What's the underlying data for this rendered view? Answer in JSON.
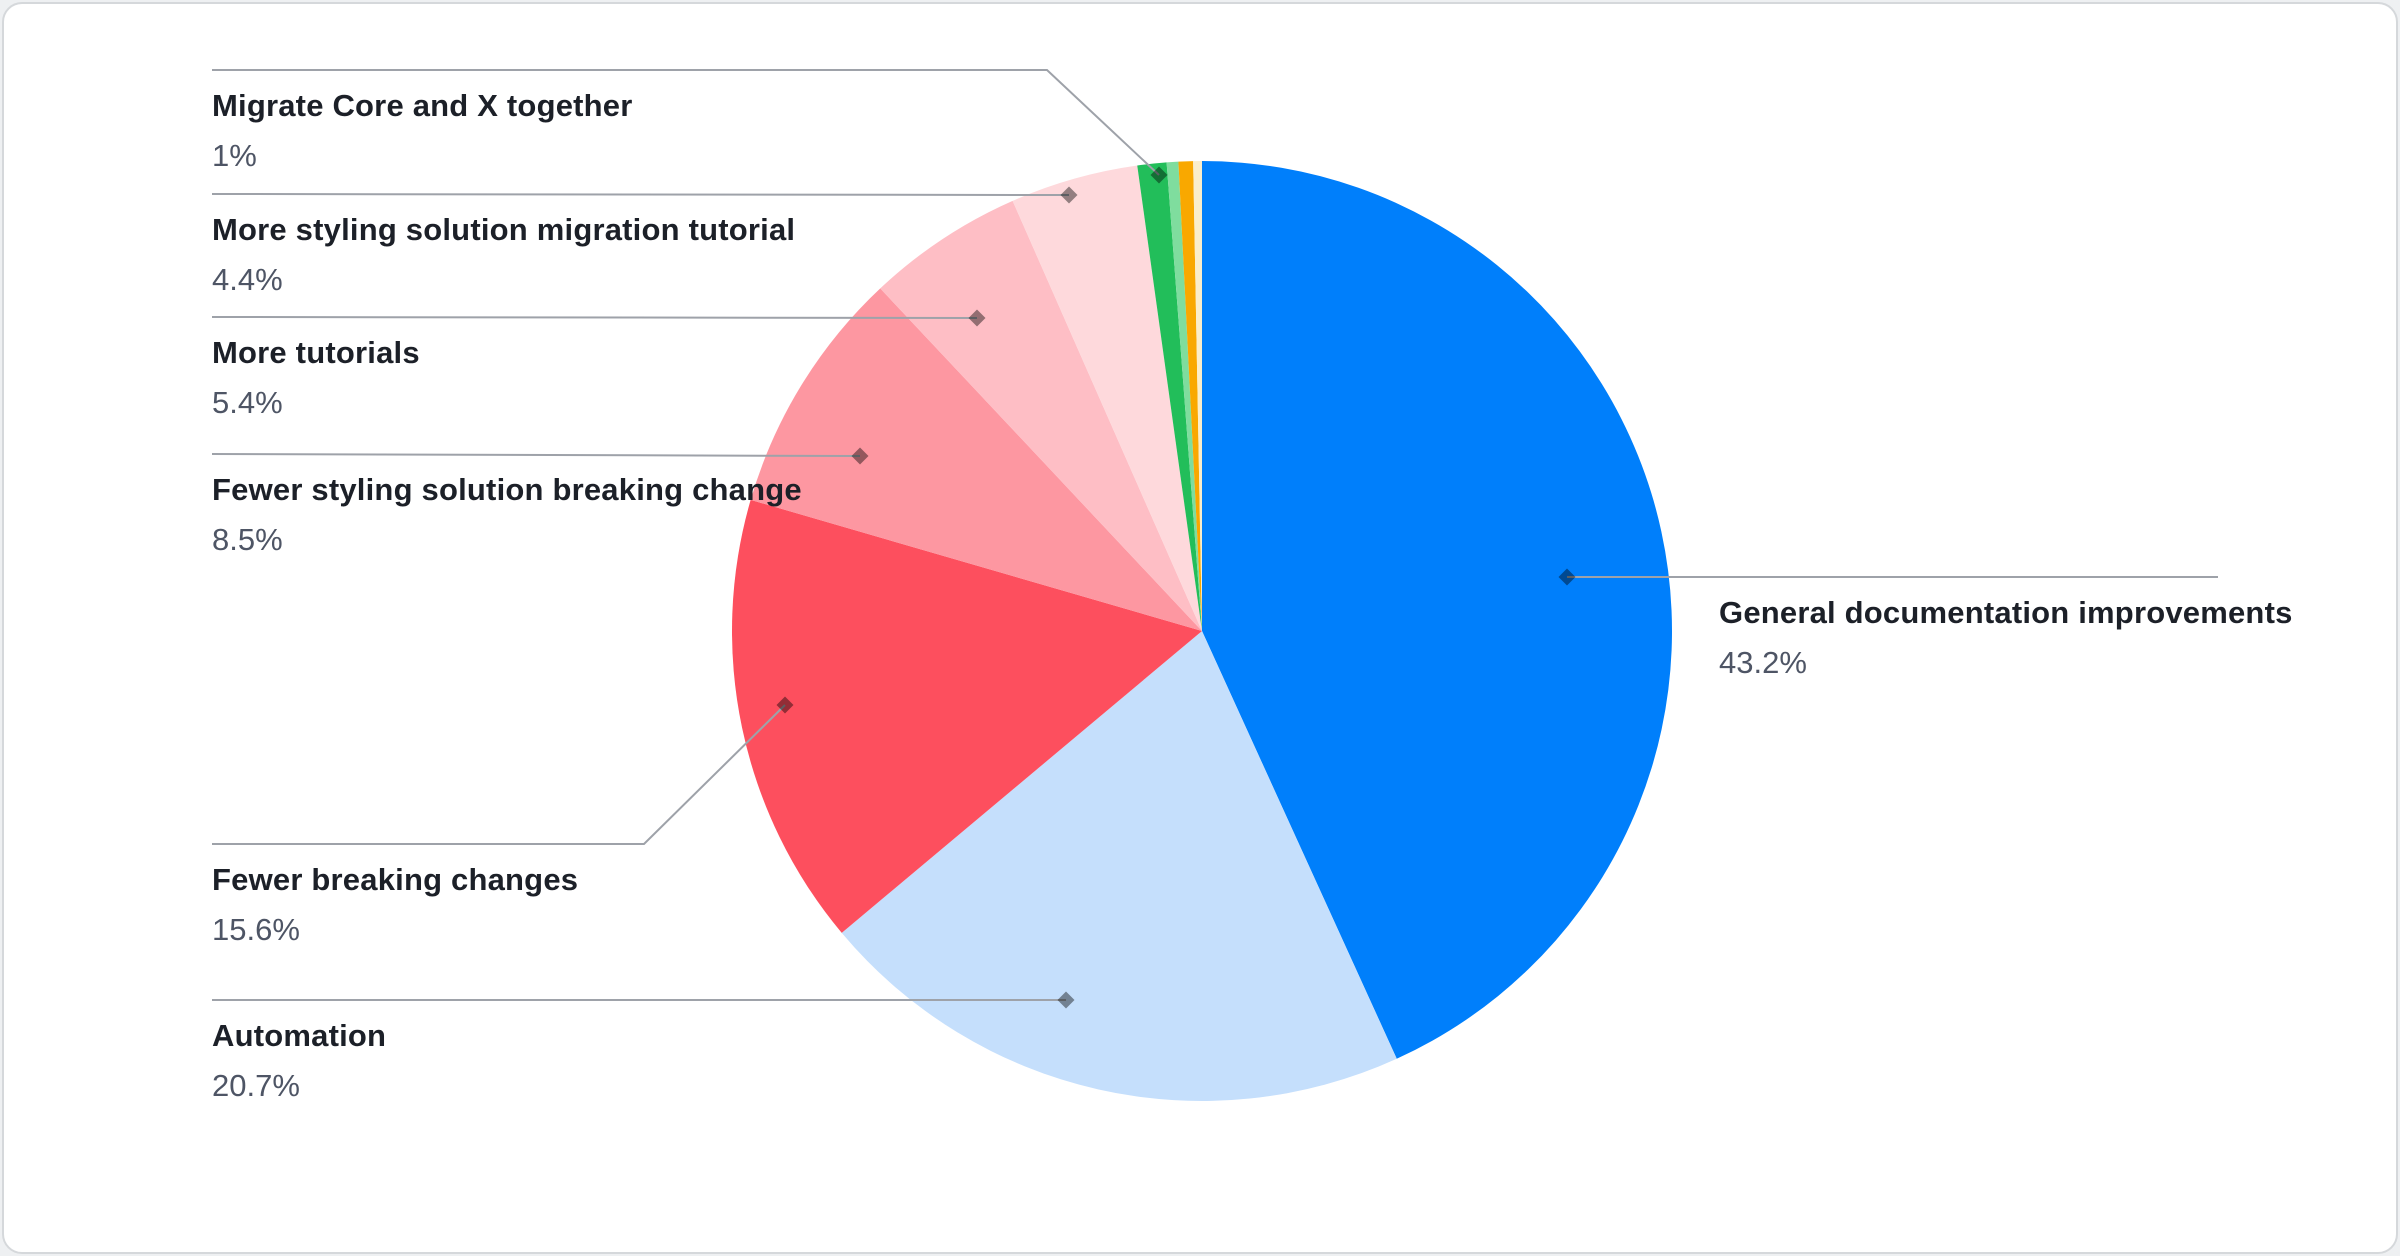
{
  "chart_data": {
    "type": "pie",
    "title": "",
    "legend_position": "callout-labels",
    "start_angle_deg": 0,
    "direction": "clockwise",
    "slices": [
      {
        "name": "General documentation improvements",
        "value": 43.2,
        "percent_label": "43.2%",
        "color": "#007ffb",
        "labeled": true,
        "label_side": "right"
      },
      {
        "name": "Automation",
        "value": 20.7,
        "percent_label": "20.7%",
        "color": "#c5dffc",
        "labeled": true,
        "label_side": "left"
      },
      {
        "name": "Fewer breaking changes",
        "value": 15.6,
        "percent_label": "15.6%",
        "color": "#fd4f5e",
        "labeled": true,
        "label_side": "left"
      },
      {
        "name": "Fewer styling solution breaking change",
        "value": 8.5,
        "percent_label": "8.5%",
        "color": "#fd97a1",
        "labeled": true,
        "label_side": "left"
      },
      {
        "name": "More tutorials",
        "value": 5.4,
        "percent_label": "5.4%",
        "color": "#febec5",
        "labeled": true,
        "label_side": "left"
      },
      {
        "name": "More styling solution migration tutorial",
        "value": 4.4,
        "percent_label": "4.4%",
        "color": "#fed9dc",
        "labeled": true,
        "label_side": "left"
      },
      {
        "name": "Migrate Core and X together",
        "value": 1.0,
        "percent_label": "1%",
        "color": "#22be5a",
        "labeled": true,
        "label_side": "left"
      },
      {
        "name": "",
        "value": 0.4,
        "percent_label": "",
        "color": "#7fdd9e",
        "labeled": false
      },
      {
        "name": "",
        "value": 0.5,
        "percent_label": "",
        "color": "#f9a800",
        "labeled": false
      },
      {
        "name": "",
        "value": 0.3,
        "percent_label": "",
        "color": "#faeecb",
        "labeled": false
      }
    ],
    "colors": {
      "label_title": "#1c2028",
      "label_percent": "#4e5565",
      "callout_line": "#9ea2a9",
      "card_border": "#d5d8db",
      "card_background": "#ffffff"
    }
  }
}
